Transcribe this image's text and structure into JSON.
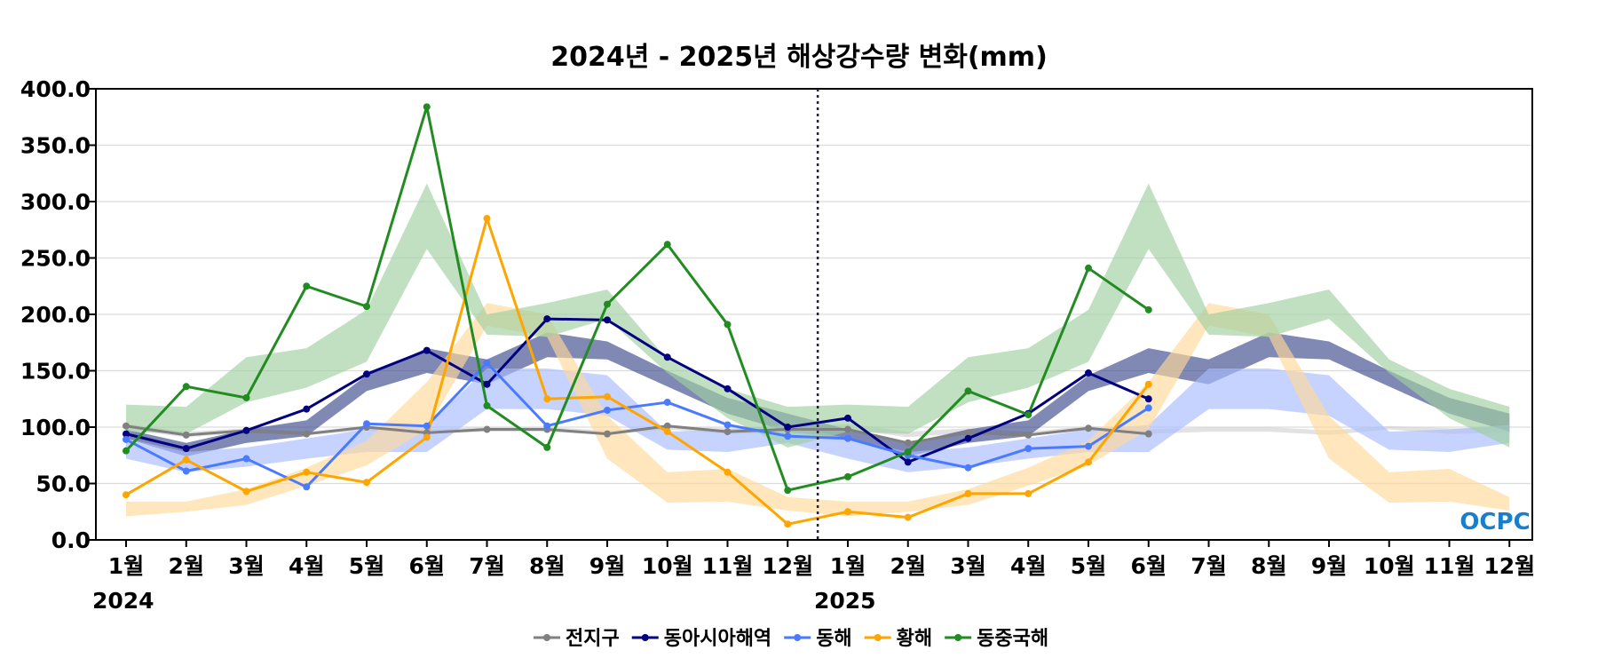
{
  "chart_data": {
    "type": "line",
    "title": "2024년 - 2025년 해상강수량 변화(mm)",
    "xlabel": "",
    "ylabel": "",
    "ylim": [
      0,
      400
    ],
    "yticks": [
      "0.0",
      "50.0",
      "100.0",
      "150.0",
      "200.0",
      "250.0",
      "300.0",
      "350.0",
      "400.0"
    ],
    "x_tick_labels": [
      "1월",
      "2월",
      "3월",
      "4월",
      "5월",
      "6월",
      "7월",
      "8월",
      "9월",
      "10월",
      "11월",
      "12월",
      "1월",
      "2월",
      "3월",
      "4월",
      "5월",
      "6월",
      "7월",
      "8월",
      "9월",
      "10월",
      "11월",
      "12월"
    ],
    "year_labels": [
      {
        "text": "2024",
        "month_index": 0
      },
      {
        "text": "2025",
        "month_index": 12
      }
    ],
    "year_divider_after_index": 11,
    "grid": "horizontal",
    "legend_position": "bottom-center",
    "series": [
      {
        "name": "전지구",
        "color": "#808080",
        "values": [
          101,
          93,
          97,
          94,
          100,
          95,
          98,
          98,
          94,
          101,
          96,
          98,
          98,
          86,
          95,
          93,
          99,
          94
        ],
        "band_color": "#d3d3d3",
        "band_lower": [
          98,
          91,
          95,
          93,
          97,
          94,
          96,
          96,
          93,
          98,
          94,
          95,
          98,
          91,
          95,
          93,
          97,
          94,
          96,
          96,
          93,
          98,
          94,
          95
        ],
        "band_upper": [
          103,
          96,
          99,
          96,
          101,
          98,
          100,
          100,
          97,
          101,
          99,
          99,
          103,
          96,
          99,
          96,
          101,
          98,
          100,
          100,
          97,
          101,
          99,
          99
        ]
      },
      {
        "name": "동아시아해역",
        "color": "#000080",
        "values": [
          94,
          81,
          97,
          116,
          147,
          168,
          138,
          196,
          195,
          162,
          134,
          100,
          108,
          69,
          90,
          112,
          148,
          125
        ],
        "band_color": "#3a4a8c",
        "band_lower": [
          90,
          74,
          86,
          92,
          132,
          148,
          138,
          162,
          160,
          136,
          112,
          96,
          90,
          74,
          86,
          92,
          132,
          148,
          138,
          162,
          160,
          136,
          112,
          96
        ],
        "band_upper": [
          98,
          86,
          98,
          106,
          146,
          170,
          160,
          184,
          176,
          150,
          126,
          112,
          98,
          86,
          98,
          106,
          146,
          170,
          160,
          184,
          176,
          150,
          126,
          112
        ]
      },
      {
        "name": "동해",
        "color": "#4a7aff",
        "values": [
          89,
          61,
          72,
          47,
          103,
          101,
          157,
          101,
          115,
          122,
          102,
          92,
          90,
          75,
          64,
          81,
          83,
          117
        ],
        "band_color": "#a9bcff",
        "band_lower": [
          72,
          60,
          65,
          72,
          78,
          78,
          116,
          116,
          110,
          80,
          78,
          86,
          72,
          60,
          65,
          72,
          78,
          78,
          116,
          116,
          110,
          80,
          78,
          86
        ],
        "band_upper": [
          90,
          78,
          82,
          90,
          98,
          102,
          152,
          152,
          146,
          96,
          98,
          102,
          90,
          78,
          82,
          90,
          98,
          102,
          152,
          152,
          146,
          96,
          98,
          102
        ]
      },
      {
        "name": "황해",
        "color": "#ffa500",
        "values": [
          40,
          71,
          43,
          60,
          51,
          91,
          285,
          125,
          127,
          96,
          60,
          14,
          25,
          20,
          41,
          41,
          69,
          138
        ],
        "band_color": "#ffd89a",
        "band_lower": [
          21,
          25,
          31,
          48,
          66,
          98,
          190,
          180,
          72,
          33,
          34,
          26,
          21,
          25,
          31,
          48,
          66,
          98,
          190,
          180,
          72,
          33,
          34,
          26
        ],
        "band_upper": [
          34,
          34,
          45,
          64,
          88,
          140,
          210,
          200,
          110,
          60,
          63,
          38,
          34,
          34,
          45,
          64,
          88,
          140,
          210,
          200,
          110,
          60,
          63,
          38
        ]
      },
      {
        "name": "동중국해",
        "color": "#228b22",
        "values": [
          79,
          136,
          126,
          225,
          207,
          384,
          119,
          82,
          209,
          262,
          191,
          44,
          56,
          78,
          132,
          111,
          241,
          204
        ],
        "band_color": "#9fcf9f",
        "band_lower": [
          96,
          94,
          122,
          135,
          158,
          258,
          182,
          180,
          196,
          148,
          108,
          82,
          96,
          94,
          122,
          135,
          158,
          258,
          182,
          180,
          196,
          148,
          108,
          82
        ],
        "band_upper": [
          120,
          118,
          162,
          170,
          204,
          316,
          200,
          210,
          222,
          160,
          134,
          118,
          120,
          118,
          162,
          170,
          204,
          316,
          200,
          210,
          222,
          160,
          134,
          118
        ]
      }
    ],
    "logo_text": "OCPC"
  }
}
